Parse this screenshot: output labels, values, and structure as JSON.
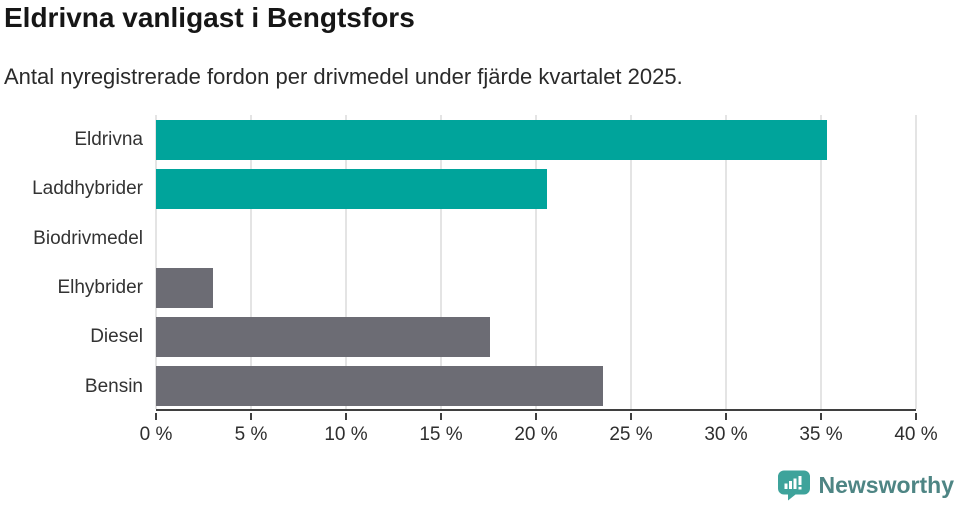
{
  "header": {
    "title": "Eldrivna vanligast i Bengtsfors",
    "subtitle": "Antal nyregistrerade fordon per drivmedel under fjärde kvartalet 2025."
  },
  "chart_data": {
    "type": "bar",
    "orientation": "horizontal",
    "title": "Eldrivna vanligast i Bengtsfors",
    "subtitle": "Antal nyregistrerade fordon per drivmedel under fjärde kvartalet 2025.",
    "categories": [
      "Eldrivna",
      "Laddhybrider",
      "Biodrivmedel",
      "Elhybrider",
      "Diesel",
      "Bensin"
    ],
    "values": [
      35.3,
      20.6,
      0,
      3.0,
      17.6,
      23.5
    ],
    "unit": "%",
    "bar_colors": [
      "#00A49B",
      "#00A49B",
      "#6C6C74",
      "#6C6C74",
      "#6C6C74",
      "#6C6C74"
    ],
    "xlabel": "",
    "ylabel": "",
    "xlim": [
      0,
      40
    ],
    "xtick_values": [
      0,
      5,
      10,
      15,
      20,
      25,
      30,
      35,
      40
    ],
    "xtick_labels": [
      "0 %",
      "5 %",
      "10 %",
      "15 %",
      "20 %",
      "25 %",
      "30 %",
      "35 %",
      "40 %"
    ],
    "grid": true,
    "legend": false
  },
  "colors": {
    "teal": "#00A49B",
    "gray": "#6C6C74",
    "gridline": "#E4E4E4",
    "axis": "#3F3F3F",
    "logo_box": "#3EA39B",
    "logo_text": "#4E8584"
  },
  "footer": {
    "brand": "Newsworthy"
  }
}
